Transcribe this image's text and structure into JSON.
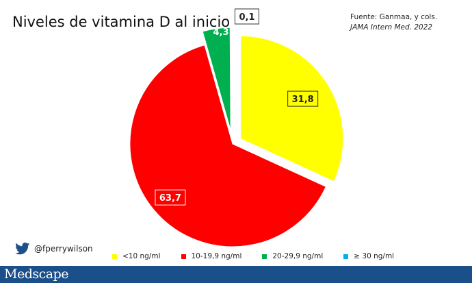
{
  "title": "Niveles de vitamina D al inicio",
  "source": {
    "line1": "Fuente: Ganmaa, y cols.",
    "line2": "JAMA Intern Med. 2022"
  },
  "twitter": {
    "handle": "@fperrywilson",
    "icon": "twitter-bird-icon"
  },
  "footer": {
    "brand": "Medscape"
  },
  "colors": {
    "lt10": "#ffff00",
    "r10_19": "#ff0000",
    "r20_29": "#00b050",
    "gte30": "#00b0f0",
    "footer": "#1b4f8a"
  },
  "chart_data": {
    "type": "pie",
    "title": "Niveles de vitamina D al inicio",
    "slices": [
      {
        "label": "<10 ng/ml",
        "value": 31.8,
        "display": "31,8",
        "color": "#ffff00"
      },
      {
        "label": "10-19,9 ng/ml",
        "value": 63.7,
        "display": "63,7",
        "color": "#ff0000"
      },
      {
        "label": "20-29,9 ng/ml",
        "value": 4.3,
        "display": "4,3",
        "color": "#00b050"
      },
      {
        "label": "≥ 30 ng/ml",
        "value": 0.1,
        "display": "0,1",
        "color": "#00b0f0"
      }
    ],
    "start": "12 o'clock, clockwise",
    "exploded": true,
    "legend_position": "bottom"
  }
}
